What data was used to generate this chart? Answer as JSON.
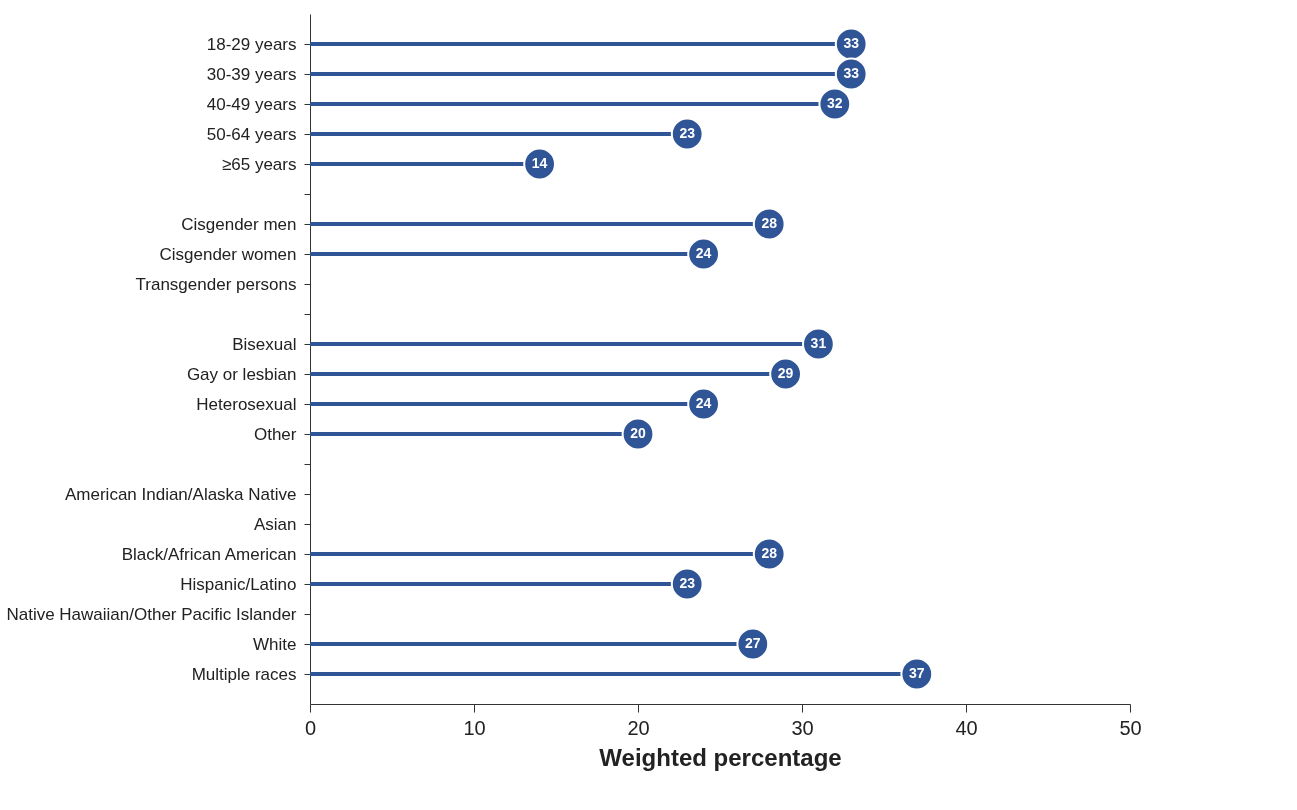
{
  "chart_data": {
    "type": "lollipop",
    "orientation": "horizontal",
    "xlabel": "Weighted percentage",
    "categories": [
      "18-29 years",
      "30-39 years",
      "40-49 years",
      "50-64 years",
      "≥65 years",
      null,
      "Cisgender men",
      "Cisgender women",
      "Transgender persons",
      null,
      "Bisexual",
      "Gay or lesbian",
      "Heterosexual",
      "Other",
      null,
      "American Indian/Alaska Native",
      "Asian",
      "Black/African American",
      "Hispanic/Latino",
      "Native Hawaiian/Other Pacific Islander",
      "White",
      "Multiple races"
    ],
    "values": [
      33,
      33,
      32,
      23,
      14,
      null,
      28,
      24,
      null,
      null,
      31,
      29,
      24,
      20,
      null,
      null,
      null,
      28,
      23,
      null,
      27,
      37
    ],
    "color": "#2f5597",
    "xlim": [
      0,
      50
    ],
    "xticks": [
      0,
      10,
      20,
      30,
      40,
      50
    ],
    "data_labels": true,
    "grid": false
  }
}
